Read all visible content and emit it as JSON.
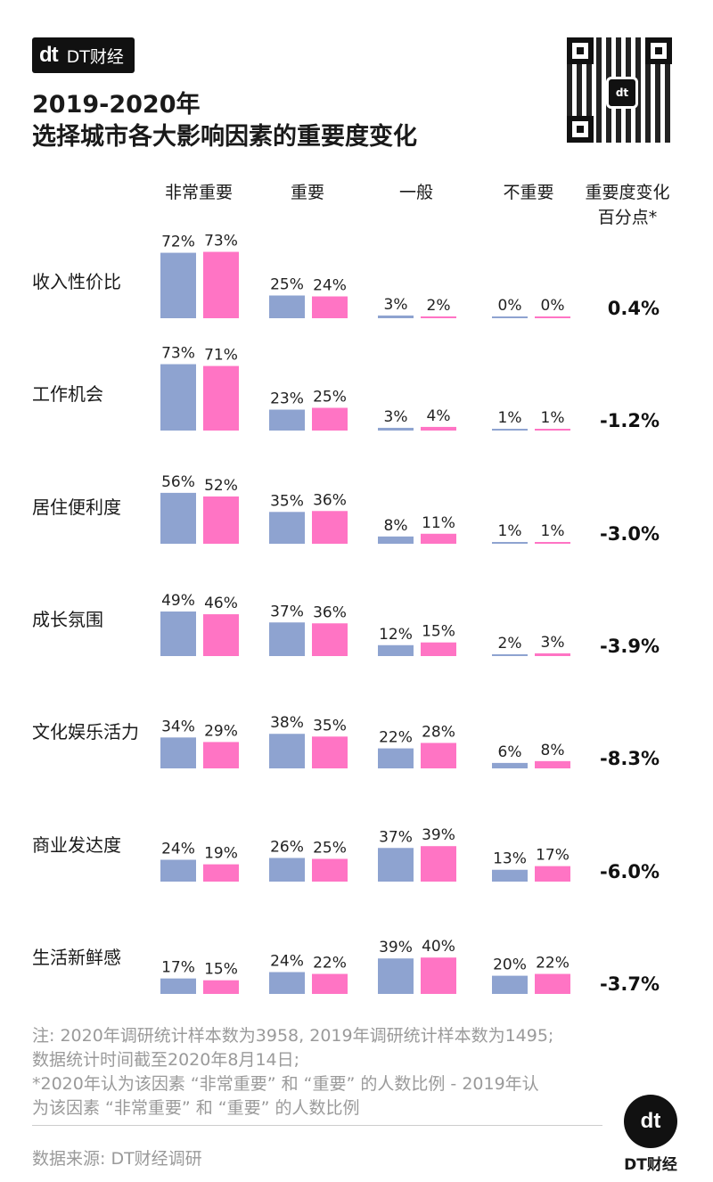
{
  "brand": {
    "logo": "dt",
    "name": "DT财经"
  },
  "title": {
    "line1": "2019-2020年",
    "line2": "选择城市各大影响因素的重要度变化"
  },
  "columns": {
    "very_important": "非常重要",
    "important": "重要",
    "average": "一般",
    "not_important": "不重要",
    "change_line1": "重要度变化",
    "change_line2": "百分点*"
  },
  "chart_data": {
    "type": "bar",
    "categories": [
      "收入性价比",
      "工作机会",
      "居住便利度",
      "成长氛围",
      "文化娱乐活力",
      "商业发达度",
      "生活新鲜感"
    ],
    "groups": [
      "非常重要",
      "重要",
      "一般",
      "不重要"
    ],
    "series": [
      {
        "name": "2019",
        "color": "#8ea3d0",
        "values": [
          [
            72,
            25,
            3,
            0
          ],
          [
            73,
            23,
            3,
            1
          ],
          [
            56,
            35,
            8,
            1
          ],
          [
            49,
            37,
            12,
            2
          ],
          [
            34,
            38,
            22,
            6
          ],
          [
            24,
            26,
            37,
            13
          ],
          [
            17,
            24,
            39,
            20
          ]
        ]
      },
      {
        "name": "2020",
        "color": "#ff74c4",
        "values": [
          [
            73,
            24,
            2,
            0
          ],
          [
            71,
            25,
            4,
            1
          ],
          [
            52,
            36,
            11,
            1
          ],
          [
            46,
            36,
            15,
            3
          ],
          [
            29,
            35,
            28,
            8
          ],
          [
            19,
            25,
            39,
            17
          ],
          [
            15,
            22,
            40,
            22
          ]
        ]
      }
    ],
    "change": [
      "0.4%",
      "-1.2%",
      "-3.0%",
      "-3.9%",
      "-8.3%",
      "-6.0%",
      "-3.7%"
    ],
    "value_suffix": "%"
  },
  "notes": [
    "注: 2020年调研统计样本数为3958, 2019年调研统计样本数为1495;",
    "数据统计时间截至2020年8月14日;",
    "*2020年认为该因素 “非常重要” 和 “重要” 的人数比例 - 2019年认",
    "为该因素 “非常重要” 和 “重要” 的人数比例"
  ],
  "source": "数据来源: DT财经调研",
  "footer": {
    "logo": "dt",
    "name": "DT财经"
  }
}
